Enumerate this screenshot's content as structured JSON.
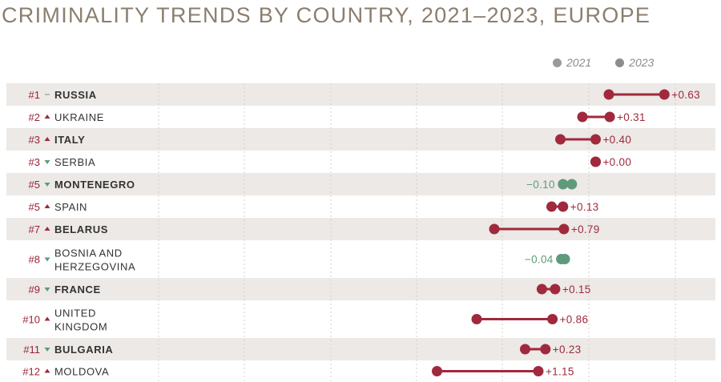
{
  "title": "CRIMINALITY TRENDS BY COUNTRY, 2021–2023, EUROPE",
  "legend": [
    {
      "label": "2021",
      "color": "#9a9a9a"
    },
    {
      "label": "2023",
      "color": "#8c8c8c"
    }
  ],
  "colors": {
    "increase": "#a1293d",
    "decrease": "#5e9a7c",
    "band": "#ece9e6",
    "grid": "#d4d0cb"
  },
  "chart_data": {
    "type": "dumbbell",
    "series": [
      {
        "name": "2021"
      },
      {
        "name": "2023"
      }
    ],
    "rows": [
      {
        "rank": "#1",
        "change": "none",
        "name": [
          "RUSSIA"
        ],
        "v2021": 7.5,
        "v2023": 8.13,
        "label": "+0.63",
        "bold": true
      },
      {
        "rank": "#2",
        "change": "up",
        "name": [
          "UKRAINE"
        ],
        "v2021": 7.2,
        "v2023": 7.51,
        "label": "+0.31",
        "bold": false
      },
      {
        "rank": "#3",
        "change": "up",
        "name": [
          "ITALY"
        ],
        "v2021": 6.95,
        "v2023": 7.35,
        "label": "+0.40",
        "bold": true
      },
      {
        "rank": "#3",
        "change": "down",
        "name": [
          "SERBIA"
        ],
        "v2021": 7.35,
        "v2023": 7.35,
        "label": "+0.00",
        "bold": false
      },
      {
        "rank": "#5",
        "change": "down",
        "name": [
          "MONTENEGRO"
        ],
        "v2021": 7.08,
        "v2023": 6.98,
        "label": "−0.10",
        "bold": true
      },
      {
        "rank": "#5",
        "change": "up",
        "name": [
          "SPAIN"
        ],
        "v2021": 6.85,
        "v2023": 6.98,
        "label": "+0.13",
        "bold": false
      },
      {
        "rank": "#7",
        "change": "up",
        "name": [
          "BELARUS"
        ],
        "v2021": 6.2,
        "v2023": 6.99,
        "label": "+0.79",
        "bold": true
      },
      {
        "rank": "#8",
        "change": "down",
        "name": [
          "BOSNIA AND",
          "HERZEGOVINA"
        ],
        "v2021": 7.0,
        "v2023": 6.96,
        "label": "−0.04",
        "bold": false
      },
      {
        "rank": "#9",
        "change": "down",
        "name": [
          "FRANCE"
        ],
        "v2021": 6.74,
        "v2023": 6.89,
        "label": "+0.15",
        "bold": true
      },
      {
        "rank": "#10",
        "change": "up",
        "name": [
          "UNITED",
          "KINGDOM"
        ],
        "v2021": 6.0,
        "v2023": 6.86,
        "label": "+0.86",
        "bold": false
      },
      {
        "rank": "#11",
        "change": "down",
        "name": [
          "BULGARIA"
        ],
        "v2021": 6.55,
        "v2023": 6.78,
        "label": "+0.23",
        "bold": true
      },
      {
        "rank": "#12",
        "change": "up",
        "name": [
          "MOLDOVA"
        ],
        "v2021": 5.55,
        "v2023": 6.7,
        "label": "+1.15",
        "bold": false
      }
    ]
  }
}
